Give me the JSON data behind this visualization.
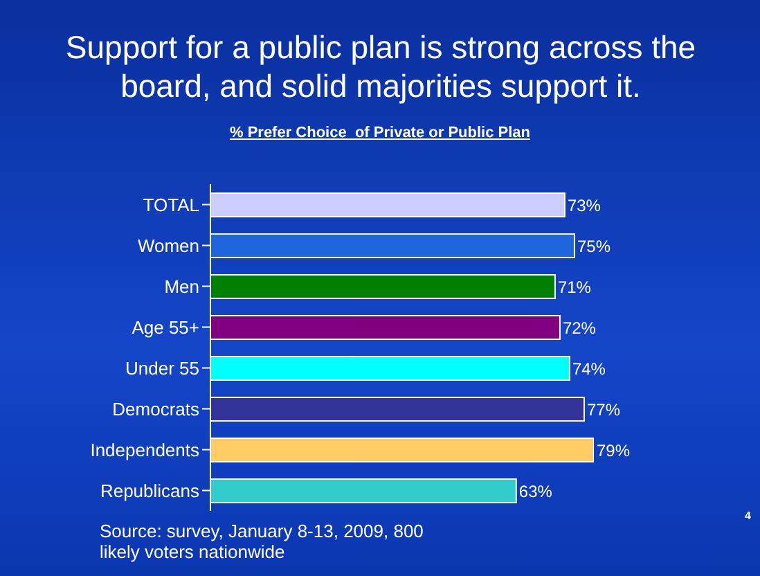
{
  "chart_data": {
    "type": "bar",
    "orientation": "horizontal",
    "title": "Support for a public plan is strong across the board, and solid majorities support it.",
    "subtitle": "% Prefer Choice  of Private or Public Plan",
    "categories": [
      "TOTAL",
      "Women",
      "Men",
      "Age 55+",
      "Under 55",
      "Democrats",
      "Independents",
      "Republicans"
    ],
    "values": [
      73,
      75,
      71,
      72,
      74,
      77,
      79,
      63
    ],
    "value_labels": [
      "73%",
      "75%",
      "71%",
      "72%",
      "74%",
      "77%",
      "79%",
      "63%"
    ],
    "colors": [
      "#ccccff",
      "#1f66dd",
      "#008000",
      "#800080",
      "#00ffff",
      "#333399",
      "#ffcc66",
      "#33cccc"
    ],
    "annotations": [
      "Source: survey, January 8-13, 2009, 800 likely voters nationwide",
      "4"
    ]
  }
}
